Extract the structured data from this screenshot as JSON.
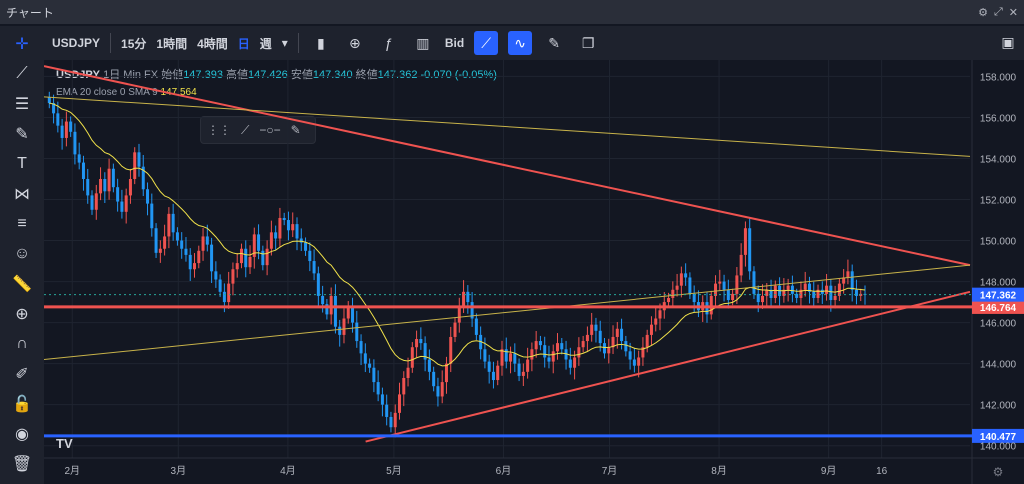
{
  "window": {
    "title": "チャート"
  },
  "toolbar": {
    "symbol": "USDJPY",
    "intervals": [
      "15分",
      "1時間",
      "4時間",
      "日",
      "週"
    ],
    "active_interval": "日",
    "price_type": "Bid"
  },
  "legend": {
    "symbol": "USDJPY",
    "interval": "1日",
    "exchange": "Min FX",
    "open_label": "始値",
    "open": "147.393",
    "high_label": "高値",
    "high": "147.426",
    "low_label": "安値",
    "low": "147.340",
    "close_label": "終値",
    "close": "147.362",
    "change": "-0.070 (-0.05%)"
  },
  "indicator": {
    "label": "EMA 20 close 0 SMA 9",
    "value": "147.564"
  },
  "colors": {
    "up": "#ef5350",
    "down": "#2196f3",
    "ema": "#f0e14a",
    "trend": "#ef5350",
    "support": "#2962ff",
    "background": "#131722"
  },
  "chart_data": {
    "type": "candlestick",
    "ylim": [
      139.4,
      158.8
    ],
    "y_ticks": [
      140,
      142,
      144,
      146,
      148,
      150,
      152,
      154,
      156,
      158
    ],
    "y_tick_labels": [
      "140.000",
      "142.000",
      "144.000",
      "146.000",
      "148.000",
      "150.000",
      "152.000",
      "154.000",
      "156.000",
      "158.000"
    ],
    "x_labels": [
      {
        "label": "2月",
        "day": 8
      },
      {
        "label": "3月",
        "day": 38
      },
      {
        "label": "4月",
        "day": 69
      },
      {
        "label": "5月",
        "day": 99
      },
      {
        "label": "6月",
        "day": 130
      },
      {
        "label": "7月",
        "day": 160
      },
      {
        "label": "8月",
        "day": 191
      },
      {
        "label": "9月",
        "day": 222
      },
      {
        "label": "16",
        "day": 237
      }
    ],
    "closes": [
      156.7,
      156.2,
      155.6,
      155.0,
      155.8,
      155.3,
      154.2,
      153.8,
      153.0,
      152.2,
      151.5,
      152.3,
      153.0,
      152.4,
      153.5,
      152.6,
      151.9,
      151.4,
      152.2,
      153.0,
      154.3,
      153.6,
      152.5,
      151.8,
      150.6,
      149.4,
      149.6,
      150.2,
      151.3,
      150.4,
      150.0,
      149.6,
      149.3,
      148.6,
      148.9,
      149.5,
      150.2,
      149.8,
      148.5,
      148.1,
      147.5,
      147.0,
      147.9,
      148.6,
      148.9,
      149.6,
      148.7,
      149.2,
      150.3,
      149.5,
      148.8,
      149.6,
      150.4,
      150.1,
      151.1,
      151.0,
      150.5,
      150.8,
      150.1,
      149.9,
      149.5,
      149.0,
      148.4,
      147.3,
      146.9,
      146.4,
      147.3,
      145.8,
      145.4,
      146.2,
      146.8,
      146.0,
      145.1,
      144.5,
      144.0,
      143.8,
      143.1,
      142.5,
      142.0,
      141.4,
      140.9,
      141.6,
      142.5,
      143.3,
      143.8,
      144.8,
      145.2,
      145.0,
      144.2,
      143.6,
      142.9,
      142.4,
      143.1,
      144.0,
      145.3,
      146.0,
      146.8,
      147.5,
      147.0,
      146.2,
      145.4,
      144.7,
      144.1,
      143.6,
      143.2,
      143.9,
      144.7,
      144.1,
      144.5,
      144.0,
      143.4,
      143.6,
      144.2,
      144.7,
      145.1,
      144.9,
      144.3,
      144.1,
      144.6,
      145.0,
      144.7,
      144.2,
      143.8,
      144.3,
      144.8,
      145.1,
      145.4,
      145.9,
      145.6,
      145.0,
      144.5,
      144.8,
      145.3,
      145.7,
      145.1,
      144.6,
      144.2,
      143.9,
      144.3,
      144.8,
      145.4,
      145.9,
      146.2,
      146.6,
      147.0,
      147.2,
      147.6,
      147.8,
      148.4,
      148.2,
      147.4,
      147.0,
      146.6,
      147.0,
      146.4,
      147.3,
      147.9,
      148.0,
      147.6,
      147.1,
      147.4,
      148.3,
      149.3,
      150.6,
      148.5,
      147.4,
      147.0,
      147.3,
      147.6,
      147.2,
      147.8,
      147.3,
      147.6,
      147.8,
      147.4,
      147.2,
      147.6,
      147.9,
      147.5,
      147.2,
      147.6,
      147.4,
      147.8,
      147.1,
      147.3,
      147.9,
      148.2,
      148.5,
      147.6,
      147.3,
      147.4,
      147.362
    ],
    "ema_label": "EMA 20",
    "trend_lines": [
      {
        "name": "upper-trendline",
        "from": {
          "day": 0,
          "price": 158.5
        },
        "to": {
          "day": 262,
          "price": 148.8
        }
      },
      {
        "name": "lower-trendline",
        "from": {
          "day": 91,
          "price": 140.2
        },
        "to": {
          "day": 262,
          "price": 147.5
        }
      },
      {
        "name": "long-thin-line-a",
        "from": {
          "day": 0,
          "price": 157.0
        },
        "to": {
          "day": 262,
          "price": 154.1
        }
      },
      {
        "name": "long-thin-line-b",
        "from": {
          "day": 0,
          "price": 144.2
        },
        "to": {
          "day": 262,
          "price": 148.8
        }
      }
    ],
    "horizontal_lines": [
      {
        "name": "resistance-line",
        "price": 146.764,
        "label": "146.764",
        "color": "#ef5350"
      },
      {
        "name": "support-line",
        "price": 140.477,
        "label": "140.477",
        "color": "#2962ff"
      }
    ],
    "last_price": {
      "price": 147.362,
      "label": "147.362"
    }
  }
}
